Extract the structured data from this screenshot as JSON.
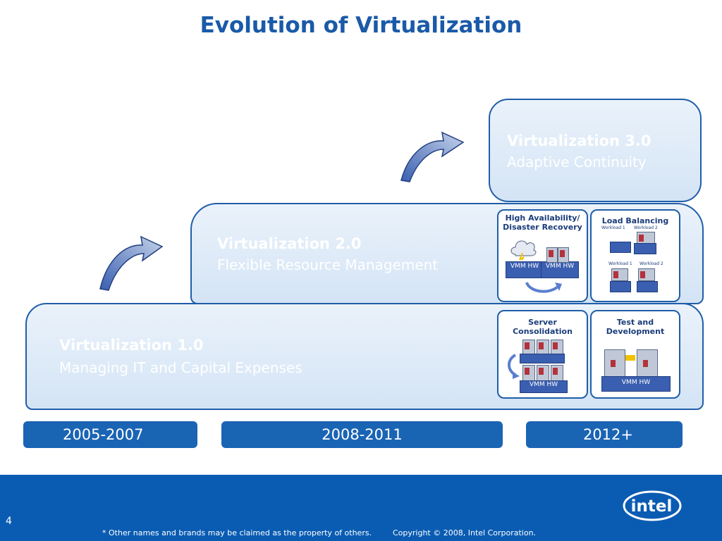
{
  "slide": {
    "title": "Evolution of Virtualization"
  },
  "stages": {
    "v1": {
      "title": "Virtualization 1.0",
      "subtitle": "Managing IT and Capital Expenses"
    },
    "v2": {
      "title": "Virtualization 2.0",
      "subtitle": "Flexible Resource Management"
    },
    "v3": {
      "title": "Virtualization 3.0",
      "subtitle": "Adaptive Continuity"
    }
  },
  "scenarios": {
    "ha": {
      "title": "High Availability/ Disaster Recovery",
      "hw_labels": [
        "VMM HW",
        "VMM HW"
      ]
    },
    "lb": {
      "title": "Load Balancing",
      "workload_labels": [
        "Workload 1",
        "Workload 2",
        "Workload 1",
        "Workload 2"
      ]
    },
    "sc": {
      "title": "Server Consolidation",
      "hw_label": "VMM HW"
    },
    "td": {
      "title": "Test and Development",
      "hw_label": "VMM HW"
    }
  },
  "timeline": [
    "2005-2007",
    "2008-2011",
    "2012+"
  ],
  "footer": {
    "page_number": "4",
    "footnote": "* Other names and brands may be claimed as the property of others.",
    "copyright": "Copyright © 2008, Intel Corporation.",
    "logo_text": "intel",
    "accent_color": "#0a5cb2"
  }
}
